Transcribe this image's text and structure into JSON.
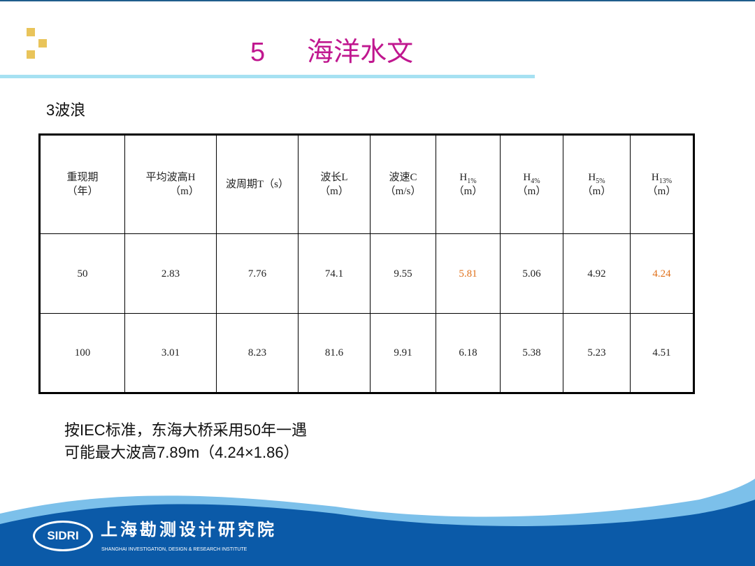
{
  "title": {
    "number": "5",
    "text": "海洋水文"
  },
  "subtitle": "3波浪",
  "table": {
    "headers": [
      {
        "main": "重现期",
        "unit": "（年）"
      },
      {
        "main": "平均波高H",
        "unit": "（m）"
      },
      {
        "main": "波周期T（s）",
        "unit": ""
      },
      {
        "main": "波长L",
        "unit": "（m）"
      },
      {
        "main": "波速C",
        "unit": "（m/s）"
      },
      {
        "main": "H",
        "sub": "1%",
        "unit": "（m）"
      },
      {
        "main": "H",
        "sub": "4%",
        "unit": "（m）"
      },
      {
        "main": "H",
        "sub": "5%",
        "unit": "（m）"
      },
      {
        "main": "H",
        "sub": "13%",
        "unit": "（m）"
      }
    ],
    "rows": [
      [
        "50",
        "2.83",
        "7.76",
        "74.1",
        "9.55",
        "5.81",
        "5.06",
        "4.92",
        "4.24"
      ],
      [
        "100",
        "3.01",
        "8.23",
        "81.6",
        "9.91",
        "6.18",
        "5.38",
        "5.23",
        "4.51"
      ]
    ],
    "highlight_color": "#e0701a"
  },
  "note": {
    "line1": "按IEC标准，东海大桥采用50年一遇",
    "line2": "可能最大波高7.89m（4.24×1.86）"
  },
  "footer": {
    "logo": "SIDRI",
    "org_cn": "上海勘测设计研究院",
    "org_en": "SHANGHAI INVESTIGATION, DESIGN & RESEARCH INSTITUTE"
  },
  "colors": {
    "title": "#c0178f",
    "footer_blue": "#0b5aa8",
    "wave_light": "#7cc0ea",
    "accent_squares": "#e9c45a"
  }
}
